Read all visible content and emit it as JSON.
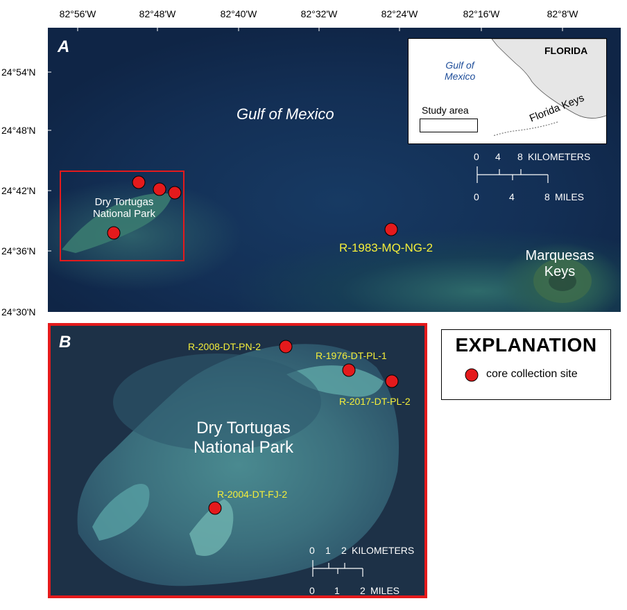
{
  "axes": {
    "longitude_labels": [
      "82°56'W",
      "82°48'W",
      "82°40'W",
      "82°32'W",
      "82°24'W",
      "82°16'W",
      "82°8'W"
    ],
    "latitude_labels": [
      "24°54'N",
      "24°48'N",
      "24°42'N",
      "24°36'N",
      "24°30'N"
    ]
  },
  "panel_a": {
    "letter": "A",
    "gulf_label": "Gulf of Mexico",
    "park_label_line1": "Dry Tortugas",
    "park_label_line2": "National Park",
    "site_label": "R-1983-MQ-NG-2",
    "marquesas_line1": "Marquesas",
    "marquesas_line2": "Keys",
    "inset": {
      "gulf_line1": "Gulf of",
      "gulf_line2": "Mexico",
      "state_label": "FLORIDA",
      "study_area_label": "Study area",
      "keys_label": "Florida Keys"
    },
    "scale": {
      "km_ticks": [
        "0",
        "4",
        "8"
      ],
      "km_unit": "KILOMETERS",
      "mi_ticks": [
        "0",
        "4",
        "8"
      ],
      "mi_unit": "MILES"
    }
  },
  "panel_b": {
    "letter": "B",
    "park_label_line1": "Dry Tortugas",
    "park_label_line2": "National Park",
    "sites": {
      "pn2": "R-2008-DT-PN-2",
      "pl1": "R-1976-DT-PL-1",
      "pl2": "R-2017-DT-PL-2",
      "fj2": "R-2004-DT-FJ-2"
    },
    "scale": {
      "km_ticks": [
        "0",
        "1",
        "2"
      ],
      "km_unit": "KILOMETERS",
      "mi_ticks": [
        "0",
        "1",
        "2"
      ],
      "mi_unit": "MILES"
    }
  },
  "explanation": {
    "title": "EXPLANATION",
    "item_label": "core collection site"
  },
  "colors": {
    "site_marker": "#e41a1c",
    "frame_red": "#e41a1c",
    "label_yellow": "#f5ee3a"
  }
}
